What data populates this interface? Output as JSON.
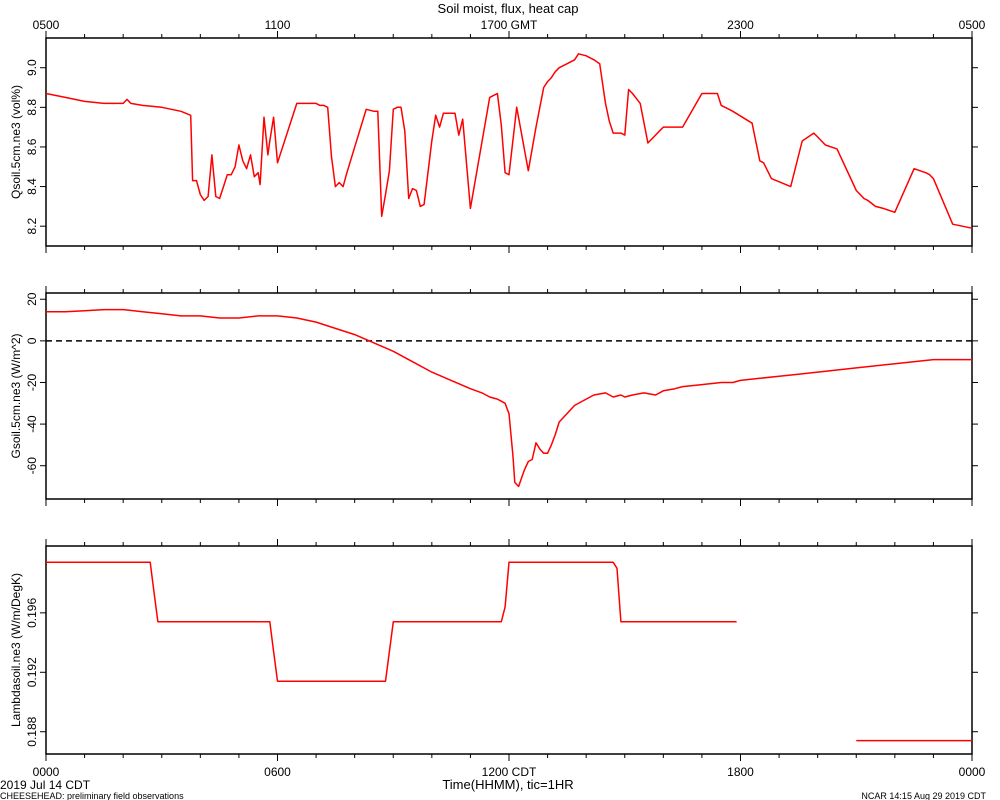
{
  "figure": {
    "title": "Soil moist, flux, heat cap",
    "top_axis_ticks": [
      "0500",
      "1100",
      "1700 GMT",
      "2300",
      "0500"
    ],
    "bottom_axis_ticks": [
      "0000",
      "0600",
      "1200 CDT",
      "1800",
      "0000"
    ],
    "xlabel": "Time(HHMM), tic=1HR",
    "date_label": "2019 Jul 14 CDT",
    "footer_left": "CHEESEHEAD: preliminary field observations",
    "footer_right": "NCAR 14:15 Aug 29 2019 CDT",
    "line_color": "#ff0000",
    "zero_line_color": "#000000"
  },
  "chart_data": [
    {
      "type": "line",
      "ylabel": "Qsoil.5cm.ne3 (vol%)",
      "x_unit": "hours since 0000 CDT",
      "xlim": [
        0,
        24
      ],
      "ylim": [
        8.1,
        9.15
      ],
      "yticks": [
        8.2,
        8.4,
        8.6,
        8.8,
        9.0
      ],
      "ytick_labels": [
        "8.2",
        "8.4",
        "8.6",
        "8.8",
        "9.0"
      ],
      "series": [
        {
          "x": [
            0,
            0.5,
            1,
            1.5,
            2,
            2.1,
            2.2,
            2.5,
            3,
            3.5,
            3.75,
            3.8,
            3.9,
            4.0,
            4.1,
            4.2,
            4.3,
            4.4,
            4.5,
            4.6,
            4.7,
            4.8,
            4.9,
            5.0,
            5.1,
            5.2,
            5.3,
            5.4,
            5.5,
            5.55,
            5.65,
            5.75,
            5.8,
            5.9,
            6.0,
            6.5,
            7.0,
            7.1,
            7.2,
            7.3,
            7.4,
            7.5,
            7.6,
            7.7,
            7.8,
            8.3,
            8.5,
            8.6,
            8.7,
            8.8,
            8.9,
            9.0,
            9.1,
            9.2,
            9.3,
            9.4,
            9.5,
            9.6,
            9.7,
            9.8,
            10.0,
            10.1,
            10.2,
            10.3,
            10.4,
            10.6,
            10.7,
            10.8,
            11.0,
            11.5,
            11.6,
            11.7,
            11.8,
            11.9,
            12.0,
            12.2,
            12.5,
            12.7,
            12.9,
            13.0,
            13.1,
            13.2,
            13.3,
            13.5,
            13.7,
            13.8,
            14.0,
            14.2,
            14.35,
            14.5,
            14.6,
            14.7,
            14.9,
            15.0,
            15.1,
            15.2,
            15.4,
            15.6,
            16.0,
            16.5,
            17.0,
            17.4,
            17.5,
            17.6,
            17.8,
            18.3,
            18.5,
            18.6,
            18.8,
            19.3,
            19.6,
            19.9,
            20.0,
            20.2,
            20.5,
            21.0,
            21.2,
            21.3,
            21.5,
            21.7,
            22.0,
            22.5,
            22.8,
            22.9,
            23.0,
            23.5,
            24.0
          ],
          "values": [
            8.87,
            8.85,
            8.83,
            8.82,
            8.82,
            8.84,
            8.82,
            8.81,
            8.8,
            8.78,
            8.76,
            8.43,
            8.43,
            8.36,
            8.33,
            8.35,
            8.56,
            8.35,
            8.34,
            8.4,
            8.46,
            8.46,
            8.5,
            8.61,
            8.53,
            8.49,
            8.56,
            8.45,
            8.47,
            8.41,
            8.75,
            8.56,
            8.63,
            8.75,
            8.52,
            8.82,
            8.82,
            8.81,
            8.81,
            8.8,
            8.55,
            8.4,
            8.42,
            8.4,
            8.47,
            8.79,
            8.78,
            8.78,
            8.25,
            8.36,
            8.48,
            8.79,
            8.8,
            8.8,
            8.68,
            8.34,
            8.39,
            8.38,
            8.3,
            8.31,
            8.63,
            8.76,
            8.7,
            8.77,
            8.77,
            8.77,
            8.66,
            8.74,
            8.29,
            8.85,
            8.86,
            8.87,
            8.71,
            8.47,
            8.46,
            8.8,
            8.48,
            8.7,
            8.9,
            8.93,
            8.95,
            8.98,
            9.0,
            9.02,
            9.04,
            9.07,
            9.06,
            9.04,
            9.02,
            8.82,
            8.73,
            8.67,
            8.67,
            8.66,
            8.89,
            8.87,
            8.82,
            8.62,
            8.7,
            8.7,
            8.87,
            8.87,
            8.81,
            8.8,
            8.78,
            8.72,
            8.53,
            8.52,
            8.44,
            8.4,
            8.63,
            8.67,
            8.65,
            8.61,
            8.59,
            8.38,
            8.34,
            8.33,
            8.3,
            8.29,
            8.27,
            8.49,
            8.47,
            8.46,
            8.44,
            8.21,
            8.19
          ]
        }
      ]
    },
    {
      "type": "line",
      "ylabel": "Gsoil.5cm.ne3 (W/m^2)",
      "x_unit": "hours since 0000 CDT",
      "xlim": [
        0,
        24
      ],
      "ylim": [
        -76,
        23
      ],
      "yticks": [
        -60,
        -40,
        -20,
        0,
        20
      ],
      "ytick_labels": [
        "-60",
        "-40",
        "-20",
        "0",
        "20"
      ],
      "zero_line": true,
      "series": [
        {
          "x": [
            0,
            0.5,
            1,
            1.5,
            2,
            2.5,
            3,
            3.5,
            4,
            4.5,
            5,
            5.5,
            6,
            6.5,
            7,
            7.5,
            8,
            8.5,
            9,
            9.5,
            10,
            10.5,
            11,
            11.3,
            11.5,
            11.7,
            11.8,
            11.9,
            12.0,
            12.1,
            12.15,
            12.25,
            12.4,
            12.5,
            12.6,
            12.7,
            12.8,
            12.9,
            13.0,
            13.1,
            13.2,
            13.3,
            13.5,
            13.7,
            14.0,
            14.2,
            14.5,
            14.7,
            14.9,
            15.0,
            15.2,
            15.5,
            15.8,
            16.0,
            16.3,
            16.5,
            17.0,
            17.5,
            17.8,
            18.0,
            18.5,
            19.0,
            19.5,
            20.0,
            21.0,
            22.0,
            23.0,
            24.0
          ],
          "values": [
            14,
            14,
            14.5,
            15,
            15,
            14,
            13,
            12,
            12,
            11,
            11,
            12,
            12,
            11,
            9,
            6,
            3,
            -1,
            -5,
            -10,
            -15,
            -19,
            -23,
            -25,
            -27,
            -28,
            -29,
            -30,
            -35,
            -55,
            -68,
            -70,
            -62,
            -58,
            -57,
            -49,
            -52,
            -54,
            -54,
            -50,
            -45,
            -39,
            -35,
            -31,
            -28,
            -26,
            -25,
            -27,
            -26,
            -27,
            -26,
            -25,
            -26,
            -24,
            -23,
            -22,
            -21,
            -20,
            -20,
            -19,
            -18,
            -17,
            -16,
            -15,
            -13,
            -11,
            -9,
            -9
          ]
        }
      ]
    },
    {
      "type": "line",
      "ylabel": "Lambdasoil.ne3 (W/m/DegK)",
      "x_unit": "hours since 0000 CDT",
      "xlim": [
        0,
        24
      ],
      "ylim": [
        0.1865,
        0.2005
      ],
      "yticks": [
        0.188,
        0.192,
        0.196
      ],
      "ytick_labels": [
        "0.188",
        "0.192",
        "0.196"
      ],
      "series": [
        {
          "x": [
            0,
            2.7,
            2.8,
            2.9,
            5.8,
            5.9,
            6.0,
            8.8,
            8.9,
            9.0,
            11.8,
            11.9,
            12.0,
            14.7,
            14.8,
            14.9,
            17.9
          ],
          "values": [
            0.1994,
            0.1994,
            0.1974,
            0.1954,
            0.1954,
            0.1934,
            0.1914,
            0.1914,
            0.1934,
            0.1954,
            0.1954,
            0.1964,
            0.1994,
            0.1994,
            0.199,
            0.1954,
            0.1954
          ]
        },
        {
          "x": [
            21.0,
            24.0
          ],
          "values": [
            0.1874,
            0.1874
          ]
        }
      ]
    }
  ]
}
